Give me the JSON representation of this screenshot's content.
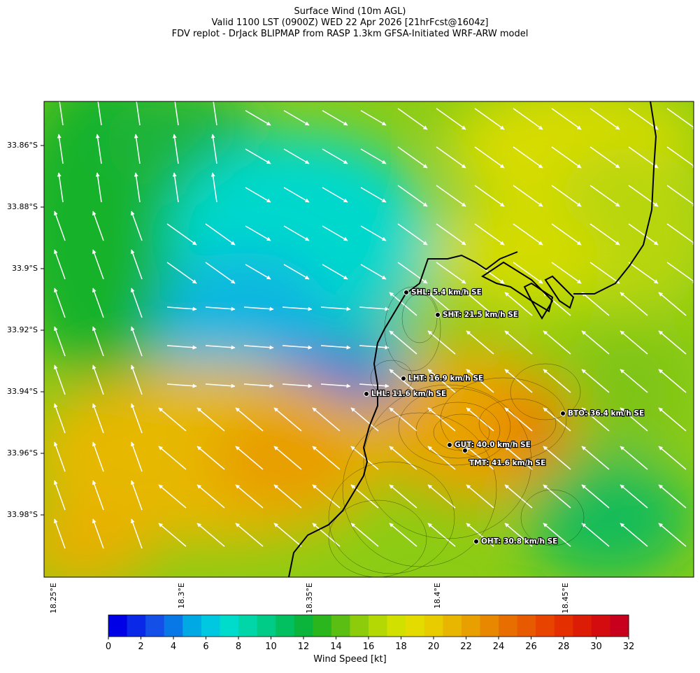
{
  "header": {
    "title_line1": "Surface Wind (10m AGL)",
    "title_line2": "Valid 1100 LST (0900Z) WED 22 Apr 2026 [21hrFcst@1604z]",
    "title_line3": "FDV replot - DrJack BLIPMAP from RASP 1.3km GFSA-Initiated WRF-ARW model"
  },
  "map": {
    "lat_labels": [
      "33.86°S",
      "33.88°S",
      "33.9°S",
      "33.92°S",
      "33.94°S",
      "33.96°S",
      "33.98°S"
    ],
    "lon_labels": [
      "18.25°E",
      "18.3°E",
      "18.35°E",
      "18.4°E",
      "18.45°E"
    ],
    "stations": [
      {
        "code": "SHL",
        "label": "SHL: 5.4 km/h SE"
      },
      {
        "code": "SHT",
        "label": "SHT: 21.5 km/h SE"
      },
      {
        "code": "LHT",
        "label": "LHT: 16.9 km/h SE"
      },
      {
        "code": "LHL",
        "label": "LHL: 11.6 km/h SE"
      },
      {
        "code": "BTO",
        "label": "BTO: 36.4 km/h SE"
      },
      {
        "code": "GUT",
        "label": "GUT: 40.0 km/h SE"
      },
      {
        "code": "TMT",
        "label": "TMT: 41.6 km/h SE"
      },
      {
        "code": "OHT",
        "label": "OHT: 30.8 km/h SE"
      }
    ]
  },
  "colorbar": {
    "label": "Wind Speed [kt]",
    "tick_labels": [
      "0",
      "2",
      "4",
      "6",
      "8",
      "10",
      "12",
      "14",
      "16",
      "18",
      "20",
      "22",
      "24",
      "26",
      "28",
      "30",
      "32"
    ],
    "colors": [
      "#0000e6",
      "#0a28e8",
      "#1450e8",
      "#0878e6",
      "#00a8e4",
      "#00c8e0",
      "#00dccc",
      "#00d6a8",
      "#00cc88",
      "#02c060",
      "#0bb43a",
      "#2cb61e",
      "#5abf12",
      "#8ccc0a",
      "#b4d804",
      "#d2e000",
      "#e4dc00",
      "#e8cc00",
      "#e8b600",
      "#e8a000",
      "#e88800",
      "#e86e00",
      "#e85a00",
      "#e84400",
      "#e43000",
      "#dc1c04",
      "#d40c10",
      "#c8001e"
    ]
  }
}
